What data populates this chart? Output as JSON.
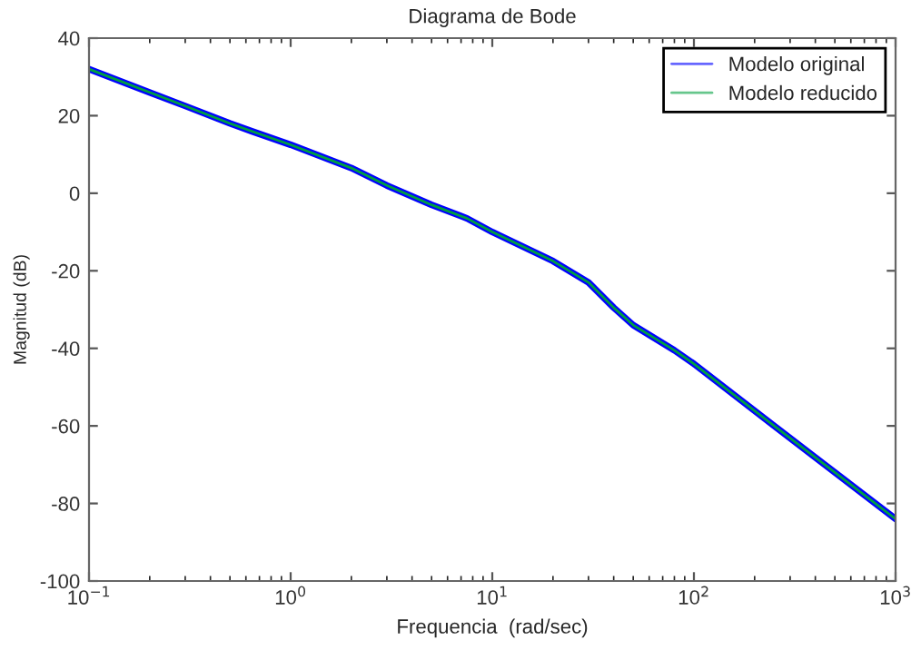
{
  "chart_data": {
    "type": "line",
    "title": "Diagrama de Bode",
    "xlabel": "Frequencia  (rad/sec)",
    "ylabel": "Magnitud (dB)",
    "x": [
      0.1,
      0.2,
      0.3,
      0.5,
      0.64,
      1,
      2,
      3,
      5,
      7.5,
      10,
      20,
      30,
      40,
      50,
      80,
      100,
      250,
      500,
      1000
    ],
    "series": [
      {
        "name": "Modelo original",
        "color": "#0000ff",
        "values": [
          32,
          26,
          22.5,
          18,
          16,
          12.5,
          6.5,
          2,
          -3,
          -6.5,
          -10,
          -17.5,
          -23,
          -29.5,
          -34,
          -40.5,
          -44,
          -60,
          -72,
          -84
        ]
      },
      {
        "name": "Modelo reducido",
        "color": "#00a040",
        "values": [
          32,
          26,
          22.5,
          18,
          16,
          12.5,
          6.5,
          2,
          -3,
          -6.5,
          -10,
          -17.5,
          -23,
          -29.5,
          -34,
          -40.5,
          -44,
          -60,
          -72,
          -84
        ]
      }
    ],
    "log": "x",
    "xlim": [
      0.1,
      1000
    ],
    "xticks": [
      {
        "value": 0.1,
        "label": "10$^{−1}$"
      },
      {
        "value": 1,
        "label": "10$^{0}$"
      },
      {
        "value": 10,
        "label": "10$^{1}$"
      },
      {
        "value": 100,
        "label": "10$^{2}$"
      },
      {
        "value": 1000,
        "label": "10$^{3}$"
      }
    ],
    "ylim": [
      -100,
      40
    ],
    "yticks": [
      -100,
      -80,
      -60,
      -40,
      -20,
      0,
      20,
      40
    ],
    "grid": false,
    "legend": "top right"
  }
}
